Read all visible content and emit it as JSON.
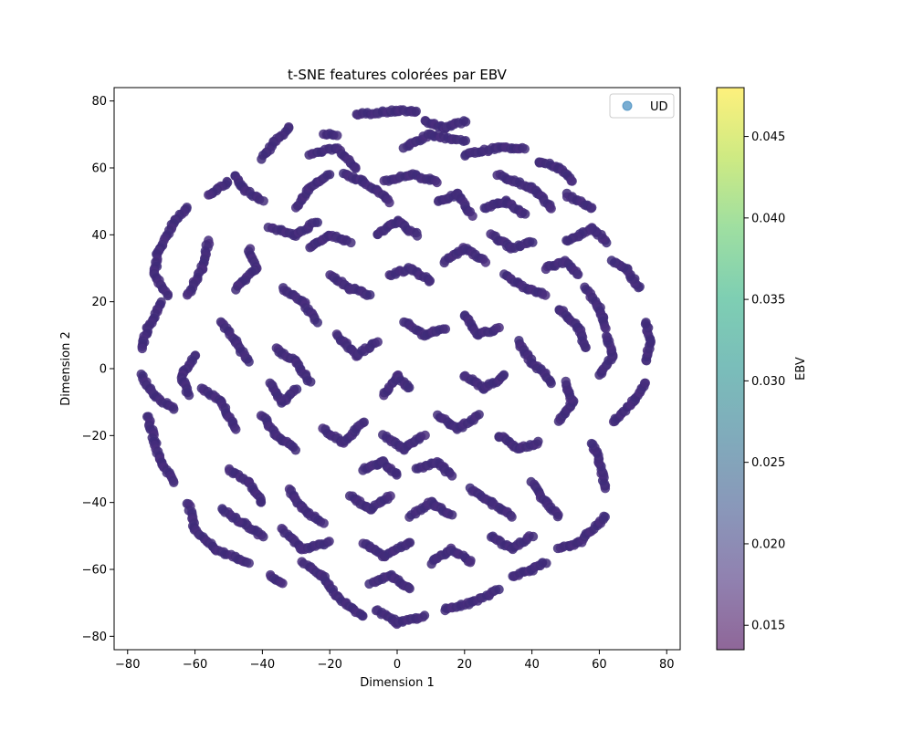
{
  "chart_data": {
    "type": "scatter",
    "title": "t-SNE features colorées par EBV",
    "xlabel": "Dimension 1",
    "ylabel": "Dimension 2",
    "xlim": [
      -84,
      84
    ],
    "ylim": [
      -84,
      84
    ],
    "xticks": [
      -80,
      -60,
      -40,
      -20,
      0,
      20,
      40,
      60,
      80
    ],
    "yticks": [
      -80,
      -60,
      -40,
      -20,
      0,
      20,
      40,
      60,
      80
    ],
    "xtick_labels": [
      "−80",
      "−60",
      "−40",
      "−20",
      "0",
      "20",
      "40",
      "60",
      "80"
    ],
    "ytick_labels": [
      "−80",
      "−60",
      "−40",
      "−20",
      "0",
      "20",
      "40",
      "60",
      "80"
    ],
    "grid": false,
    "legend": {
      "placement": "top-right",
      "entries": [
        "UD"
      ]
    },
    "series": [
      {
        "name": "UD",
        "color_variable": "EBV",
        "point_color": "#472d7b",
        "worms": [
          [
            [
              -12,
              76
            ],
            [
              0,
              77
            ],
            [
              6,
              77
            ]
          ],
          [
            [
              -22,
              70
            ],
            [
              -18,
              70
            ]
          ],
          [
            [
              -32,
              72
            ],
            [
              -36,
              68
            ],
            [
              -40,
              63
            ]
          ],
          [
            [
              -50,
              56
            ],
            [
              -56,
              52
            ]
          ],
          [
            [
              -62,
              48
            ],
            [
              -66,
              44
            ],
            [
              -71,
              35
            ],
            [
              -72,
              28
            ],
            [
              -68,
              22
            ]
          ],
          [
            [
              -48,
              58
            ],
            [
              -46,
              54
            ],
            [
              -40,
              50
            ]
          ],
          [
            [
              -26,
              64
            ],
            [
              -18,
              66
            ],
            [
              -12,
              60
            ]
          ],
          [
            [
              -30,
              48
            ],
            [
              -26,
              54
            ],
            [
              -20,
              58
            ]
          ],
          [
            [
              8,
              74
            ],
            [
              14,
              72
            ],
            [
              20,
              74
            ]
          ],
          [
            [
              2,
              66
            ],
            [
              10,
              70
            ],
            [
              20,
              68
            ]
          ],
          [
            [
              20,
              64
            ],
            [
              30,
              66
            ],
            [
              38,
              66
            ]
          ],
          [
            [
              42,
              62
            ],
            [
              48,
              60
            ],
            [
              52,
              56
            ]
          ],
          [
            [
              50,
              52
            ],
            [
              58,
              48
            ]
          ],
          [
            [
              30,
              58
            ],
            [
              40,
              54
            ],
            [
              46,
              48
            ]
          ],
          [
            [
              -4,
              56
            ],
            [
              4,
              58
            ],
            [
              12,
              56
            ]
          ],
          [
            [
              12,
              50
            ],
            [
              18,
              52
            ],
            [
              22,
              46
            ]
          ],
          [
            [
              26,
              48
            ],
            [
              32,
              50
            ],
            [
              38,
              46
            ]
          ],
          [
            [
              -16,
              58
            ],
            [
              -10,
              56
            ],
            [
              -2,
              50
            ]
          ],
          [
            [
              -38,
              42
            ],
            [
              -30,
              40
            ],
            [
              -24,
              44
            ]
          ],
          [
            [
              -56,
              38
            ],
            [
              -58,
              30
            ],
            [
              -62,
              22
            ]
          ],
          [
            [
              -44,
              36
            ],
            [
              -42,
              30
            ],
            [
              -48,
              24
            ]
          ],
          [
            [
              -70,
              20
            ],
            [
              -74,
              12
            ],
            [
              -76,
              6
            ]
          ],
          [
            [
              -76,
              -2
            ],
            [
              -72,
              -8
            ],
            [
              -66,
              -12
            ]
          ],
          [
            [
              -74,
              -14
            ],
            [
              -72,
              -22
            ],
            [
              -70,
              -28
            ],
            [
              -66,
              -34
            ]
          ],
          [
            [
              -62,
              -40
            ],
            [
              -60,
              -48
            ],
            [
              -54,
              -54
            ],
            [
              -44,
              -58
            ]
          ],
          [
            [
              -38,
              -62
            ],
            [
              -34,
              -64
            ]
          ],
          [
            [
              -28,
              -58
            ],
            [
              -22,
              -62
            ],
            [
              -18,
              -68
            ],
            [
              -10,
              -74
            ]
          ],
          [
            [
              -6,
              -72
            ],
            [
              0,
              -76
            ],
            [
              8,
              -74
            ]
          ],
          [
            [
              14,
              -72
            ],
            [
              22,
              -70
            ],
            [
              30,
              -66
            ]
          ],
          [
            [
              34,
              -62
            ],
            [
              40,
              -60
            ],
            [
              44,
              -58
            ]
          ],
          [
            [
              48,
              -54
            ],
            [
              54,
              -52
            ],
            [
              62,
              -44
            ]
          ],
          [
            [
              62,
              -36
            ],
            [
              60,
              -28
            ],
            [
              58,
              -22
            ]
          ],
          [
            [
              64,
              -16
            ],
            [
              70,
              -10
            ],
            [
              74,
              -4
            ]
          ],
          [
            [
              74,
              2
            ],
            [
              75,
              8
            ],
            [
              74,
              14
            ]
          ],
          [
            [
              72,
              24
            ],
            [
              68,
              30
            ],
            [
              64,
              32
            ]
          ],
          [
            [
              62,
              38
            ],
            [
              58,
              42
            ],
            [
              50,
              38
            ]
          ],
          [
            [
              -34,
              24
            ],
            [
              -28,
              20
            ],
            [
              -24,
              14
            ]
          ],
          [
            [
              -20,
              28
            ],
            [
              -14,
              24
            ],
            [
              -8,
              22
            ]
          ],
          [
            [
              -2,
              28
            ],
            [
              4,
              30
            ],
            [
              10,
              26
            ]
          ],
          [
            [
              14,
              32
            ],
            [
              20,
              36
            ],
            [
              26,
              32
            ]
          ],
          [
            [
              32,
              28
            ],
            [
              38,
              24
            ],
            [
              44,
              22
            ]
          ],
          [
            [
              48,
              18
            ],
            [
              54,
              12
            ],
            [
              56,
              6
            ]
          ],
          [
            [
              -52,
              14
            ],
            [
              -48,
              8
            ],
            [
              -44,
              2
            ]
          ],
          [
            [
              -36,
              6
            ],
            [
              -30,
              2
            ],
            [
              -26,
              -4
            ]
          ],
          [
            [
              -18,
              10
            ],
            [
              -12,
              4
            ],
            [
              -6,
              8
            ]
          ],
          [
            [
              2,
              14
            ],
            [
              8,
              10
            ],
            [
              14,
              12
            ]
          ],
          [
            [
              20,
              16
            ],
            [
              24,
              10
            ],
            [
              30,
              12
            ]
          ],
          [
            [
              36,
              8
            ],
            [
              40,
              2
            ],
            [
              46,
              -4
            ]
          ],
          [
            [
              -58,
              -6
            ],
            [
              -52,
              -10
            ],
            [
              -48,
              -18
            ]
          ],
          [
            [
              -40,
              -14
            ],
            [
              -36,
              -20
            ],
            [
              -30,
              -24
            ]
          ],
          [
            [
              -22,
              -18
            ],
            [
              -16,
              -22
            ],
            [
              -10,
              -16
            ]
          ],
          [
            [
              -4,
              -20
            ],
            [
              2,
              -24
            ],
            [
              8,
              -20
            ]
          ],
          [
            [
              12,
              -14
            ],
            [
              18,
              -18
            ],
            [
              24,
              -14
            ]
          ],
          [
            [
              30,
              -20
            ],
            [
              36,
              -24
            ],
            [
              42,
              -22
            ]
          ],
          [
            [
              48,
              -16
            ],
            [
              52,
              -10
            ],
            [
              50,
              -4
            ]
          ],
          [
            [
              -50,
              -30
            ],
            [
              -44,
              -34
            ],
            [
              -40,
              -40
            ]
          ],
          [
            [
              -32,
              -36
            ],
            [
              -28,
              -42
            ],
            [
              -22,
              -46
            ]
          ],
          [
            [
              -14,
              -38
            ],
            [
              -8,
              -42
            ],
            [
              -2,
              -38
            ]
          ],
          [
            [
              4,
              -44
            ],
            [
              10,
              -40
            ],
            [
              16,
              -44
            ]
          ],
          [
            [
              22,
              -36
            ],
            [
              28,
              -40
            ],
            [
              34,
              -44
            ]
          ],
          [
            [
              40,
              -34
            ],
            [
              44,
              -40
            ],
            [
              48,
              -44
            ]
          ],
          [
            [
              -34,
              -48
            ],
            [
              -28,
              -54
            ],
            [
              -20,
              -52
            ]
          ],
          [
            [
              -10,
              -52
            ],
            [
              -4,
              -56
            ],
            [
              4,
              -52
            ]
          ],
          [
            [
              10,
              -58
            ],
            [
              16,
              -54
            ],
            [
              22,
              -58
            ]
          ],
          [
            [
              28,
              -50
            ],
            [
              34,
              -54
            ],
            [
              40,
              -50
            ]
          ],
          [
            [
              -6,
              40
            ],
            [
              0,
              44
            ],
            [
              6,
              40
            ]
          ],
          [
            [
              -26,
              36
            ],
            [
              -20,
              40
            ],
            [
              -14,
              38
            ]
          ],
          [
            [
              28,
              40
            ],
            [
              34,
              36
            ],
            [
              40,
              38
            ]
          ],
          [
            [
              -60,
              4
            ],
            [
              -64,
              -2
            ],
            [
              -62,
              -8
            ]
          ],
          [
            [
              60,
              -2
            ],
            [
              64,
              4
            ],
            [
              62,
              10
            ]
          ],
          [
            [
              56,
              24
            ],
            [
              60,
              18
            ],
            [
              62,
              12
            ]
          ],
          [
            [
              -8,
              -64
            ],
            [
              -2,
              -62
            ],
            [
              4,
              -66
            ]
          ],
          [
            [
              -40,
              -50
            ],
            [
              -46,
              -46
            ],
            [
              -52,
              -42
            ]
          ],
          [
            [
              44,
              30
            ],
            [
              50,
              32
            ],
            [
              54,
              28
            ]
          ],
          [
            [
              -4,
              -8
            ],
            [
              0,
              -2
            ],
            [
              4,
              -6
            ]
          ],
          [
            [
              -10,
              -30
            ],
            [
              -4,
              -28
            ],
            [
              0,
              -32
            ]
          ],
          [
            [
              6,
              -30
            ],
            [
              12,
              -28
            ],
            [
              16,
              -32
            ]
          ],
          [
            [
              -30,
              -6
            ],
            [
              -34,
              -10
            ],
            [
              -38,
              -4
            ]
          ],
          [
            [
              20,
              -2
            ],
            [
              26,
              -6
            ],
            [
              32,
              -2
            ]
          ]
        ]
      }
    ],
    "colorbar": {
      "label": "EBV",
      "min": 0.0135,
      "max": 0.048,
      "ticks": [
        0.015,
        0.02,
        0.025,
        0.03,
        0.035,
        0.04,
        0.045
      ],
      "tick_labels": [
        "0.015",
        "0.020",
        "0.025",
        "0.030",
        "0.035",
        "0.040",
        "0.045"
      ],
      "colormap": "viridis",
      "alpha": 0.6
    }
  }
}
